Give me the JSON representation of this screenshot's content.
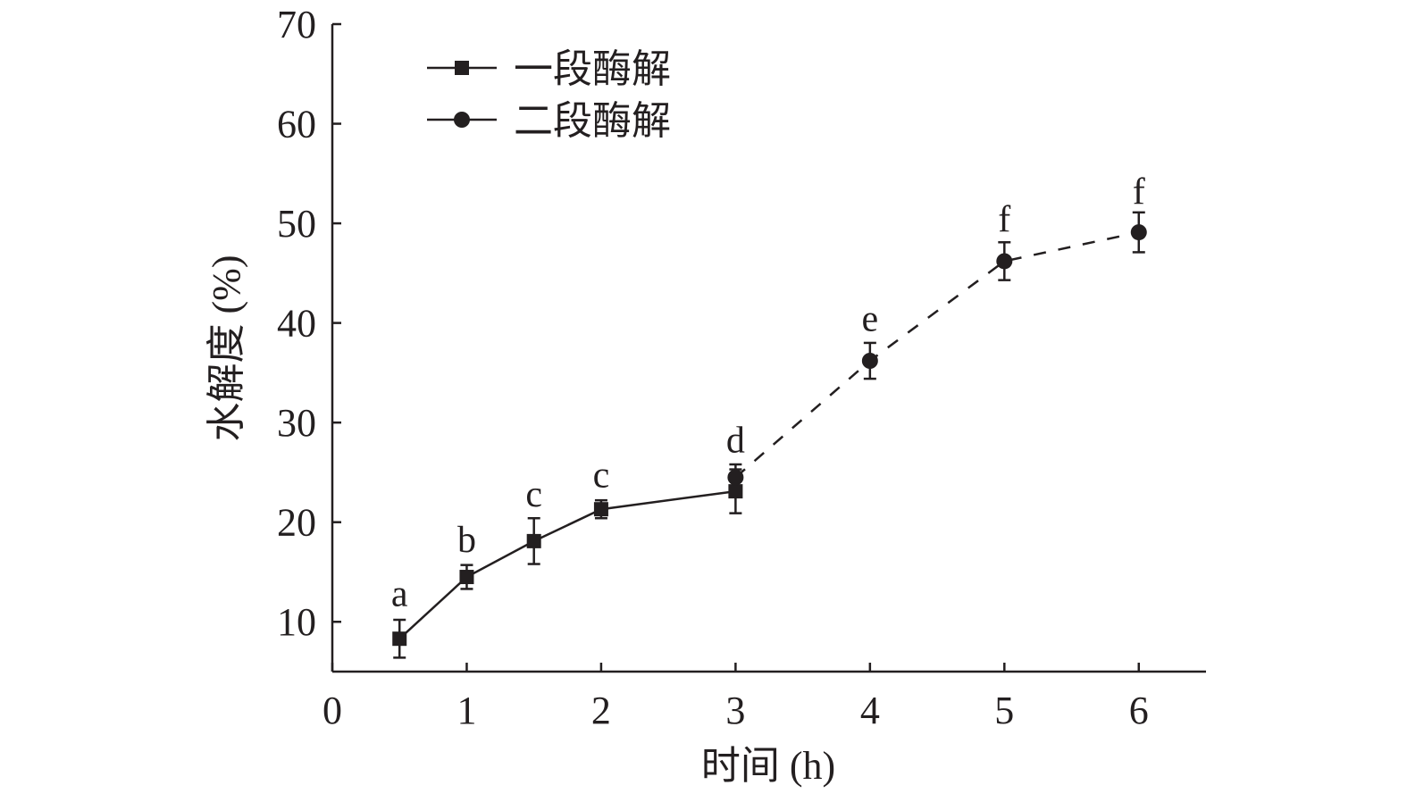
{
  "chart_data": {
    "type": "line",
    "xlabel": "时间 (h)",
    "ylabel": "水解度 (%)",
    "xlim": [
      0,
      6.5
    ],
    "ylim": [
      5,
      70
    ],
    "x_ticks": [
      0,
      1,
      2,
      3,
      4,
      5,
      6
    ],
    "y_ticks": [
      10,
      20,
      30,
      40,
      50,
      60,
      70
    ],
    "legend_position": "top-left",
    "series": [
      {
        "name": "一段酶解",
        "marker": "square",
        "line_style": "solid",
        "color": "#231f20",
        "x": [
          0.5,
          1,
          1.5,
          2,
          3
        ],
        "y": [
          8.3,
          14.5,
          18.1,
          21.3,
          23.1
        ],
        "error": [
          1.9,
          1.2,
          2.3,
          0.9,
          2.2
        ]
      },
      {
        "name": "二段酶解",
        "marker": "circle",
        "line_style": "dashed",
        "color": "#231f20",
        "x": [
          3,
          4,
          5,
          6
        ],
        "y": [
          24.5,
          36.2,
          46.2,
          49.1
        ],
        "error": [
          1.3,
          1.8,
          1.9,
          2.0
        ]
      }
    ],
    "annotations": [
      {
        "text": "a",
        "x": 0.5,
        "y": 11.6
      },
      {
        "text": "b",
        "x": 1,
        "y": 17.0
      },
      {
        "text": "c",
        "x": 1.5,
        "y": 21.6
      },
      {
        "text": "c",
        "x": 2,
        "y": 23.5
      },
      {
        "text": "d",
        "x": 3,
        "y": 27.0
      },
      {
        "text": "e",
        "x": 4,
        "y": 39.2
      },
      {
        "text": "f",
        "x": 5,
        "y": 49.2
      },
      {
        "text": "f",
        "x": 6,
        "y": 52.0
      }
    ]
  }
}
